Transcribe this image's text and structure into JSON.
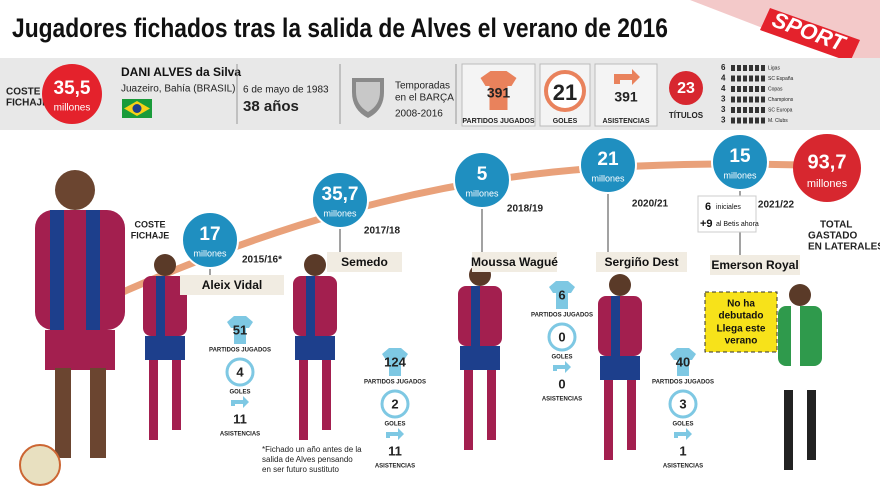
{
  "header": {
    "title": "Jugadores fichados tras la salida de Alves el verano de 2016",
    "logo": "SPORT"
  },
  "alves": {
    "cost_label": [
      "COSTE",
      "FICHAJE"
    ],
    "cost": "35,5",
    "cost_unit": "millones",
    "name": "DANI ALVES da Silva",
    "origin": "Juazeiro, Bahía (BRASIL)",
    "birth": "6 de mayo de 1983",
    "age": "38 años",
    "seasons_label": [
      "Temporadas",
      "en el BARÇA"
    ],
    "seasons": "2008-2016",
    "stats": [
      {
        "value": "391",
        "label": "PARTIDOS JUGADOS"
      },
      {
        "value": "21",
        "label": "GOLES"
      },
      {
        "value": "391",
        "label": "ASISTENCIAS"
      },
      {
        "value": "23",
        "label": "TÍTULOS"
      }
    ],
    "titles": [
      {
        "count": "6",
        "name": "Ligas"
      },
      {
        "count": "4",
        "name": "SC España"
      },
      {
        "count": "4",
        "name": "Copas"
      },
      {
        "count": "3",
        "name": "Champions"
      },
      {
        "count": "3",
        "name": "SC Europa"
      },
      {
        "count": "3",
        "name": "M. Clubs"
      }
    ]
  },
  "fee_label": [
    "COSTE",
    "FICHAJE"
  ],
  "players": [
    {
      "name": "Aleix Vidal",
      "season": "2015/16*",
      "fee": "17",
      "unit": "millones",
      "stats": [
        {
          "value": "51",
          "label": "PARTIDOS JUGADOS"
        },
        {
          "value": "4",
          "label": "GOLES"
        },
        {
          "value": "11",
          "label": "ASISTENCIAS"
        }
      ]
    },
    {
      "name": "Semedo",
      "season": "2017/18",
      "fee": "35,7",
      "unit": "millones",
      "stats": [
        {
          "value": "124",
          "label": "PARTIDOS JUGADOS"
        },
        {
          "value": "2",
          "label": "GOLES"
        },
        {
          "value": "11",
          "label": "ASISTENCIAS"
        }
      ]
    },
    {
      "name": "Moussa Wagué",
      "season": "2018/19",
      "fee": "5",
      "unit": "millones",
      "stats": [
        {
          "value": "6",
          "label": "PARTIDOS JUGADOS"
        },
        {
          "value": "0",
          "label": "GOLES"
        },
        {
          "value": "0",
          "label": "ASISTENCIAS"
        }
      ]
    },
    {
      "name": "Sergiño Dest",
      "season": "2020/21",
      "fee": "21",
      "unit": "millones",
      "stats": [
        {
          "value": "40",
          "label": "PARTIDOS JUGADOS"
        },
        {
          "value": "3",
          "label": "GOLES"
        },
        {
          "value": "1",
          "label": "ASISTENCIAS"
        }
      ]
    },
    {
      "name": "Emerson Royal",
      "season": "2021/22",
      "fee": "15",
      "unit": "millones",
      "stats": []
    }
  ],
  "vidal_note": [
    "*Fichado un año antes de la",
    "salida de Alves pensando",
    "en ser futuro sustituto"
  ],
  "emerson_fee_detail": [
    {
      "amount": "6",
      "text": "iniciales"
    },
    {
      "amount": "+9",
      "text": "al Betis ahora"
    }
  ],
  "emerson_badge": [
    "No ha",
    "debutado",
    "Llega este",
    "verano"
  ],
  "total": {
    "value": "93,7",
    "unit": "millones",
    "label": [
      "TOTAL",
      "GASTADO",
      "EN LATERALES"
    ]
  }
}
